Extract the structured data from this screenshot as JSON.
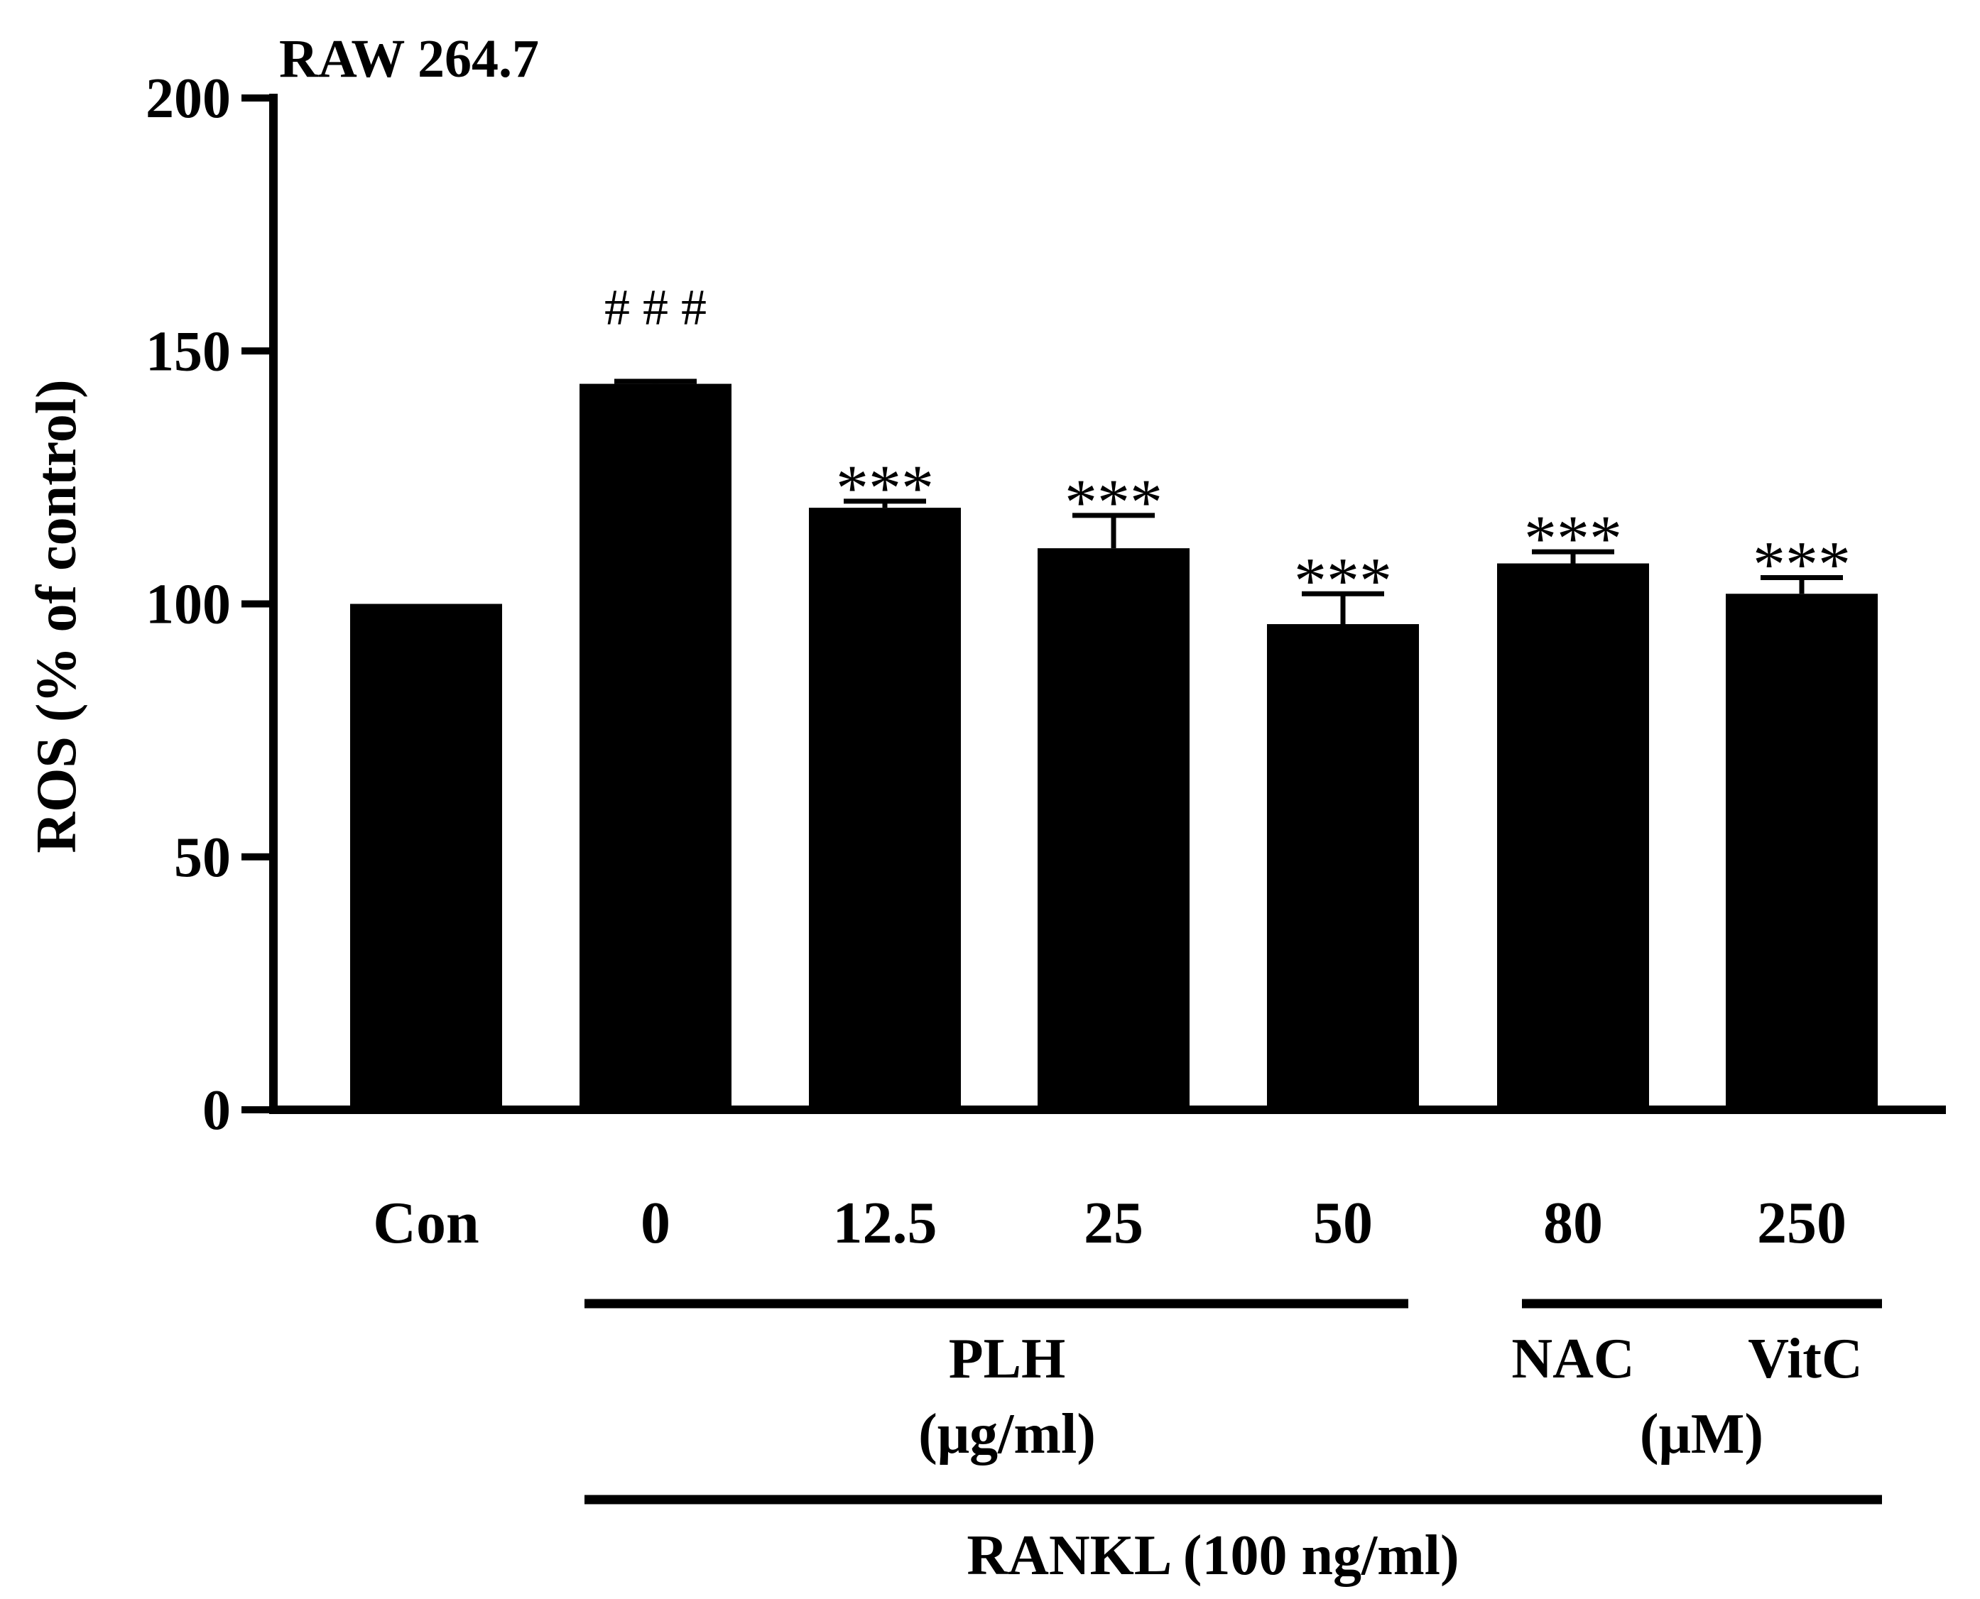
{
  "chart_data": {
    "type": "bar",
    "title": "RAW 264.7",
    "ylabel": "ROS (% of control)",
    "xlabel": "",
    "ylim": [
      0,
      200
    ],
    "yticks": [
      0,
      50,
      100,
      150,
      200
    ],
    "ytick_labels": [
      "0",
      "50",
      "100",
      "150",
      "200"
    ],
    "categories": [
      "Con",
      "0",
      "12.5",
      "25",
      "50",
      "80",
      "250"
    ],
    "values": [
      100,
      143.5,
      119,
      111,
      96,
      108,
      102
    ],
    "errors": [
      0,
      0.5,
      1.3,
      6.5,
      6,
      2.3,
      3.2
    ],
    "annotations": [
      "",
      "# # #",
      "***",
      "***",
      "***",
      "***",
      "***"
    ],
    "bar_color": "#000000",
    "groups": {
      "plh": {
        "label": "PLH",
        "unit": "(μg/ml)"
      },
      "nac": {
        "label": "NAC"
      },
      "vitc": {
        "label": "VitC"
      },
      "um_unit": "(μM)",
      "rankl": "RANKL (100 ng/ml)"
    }
  }
}
